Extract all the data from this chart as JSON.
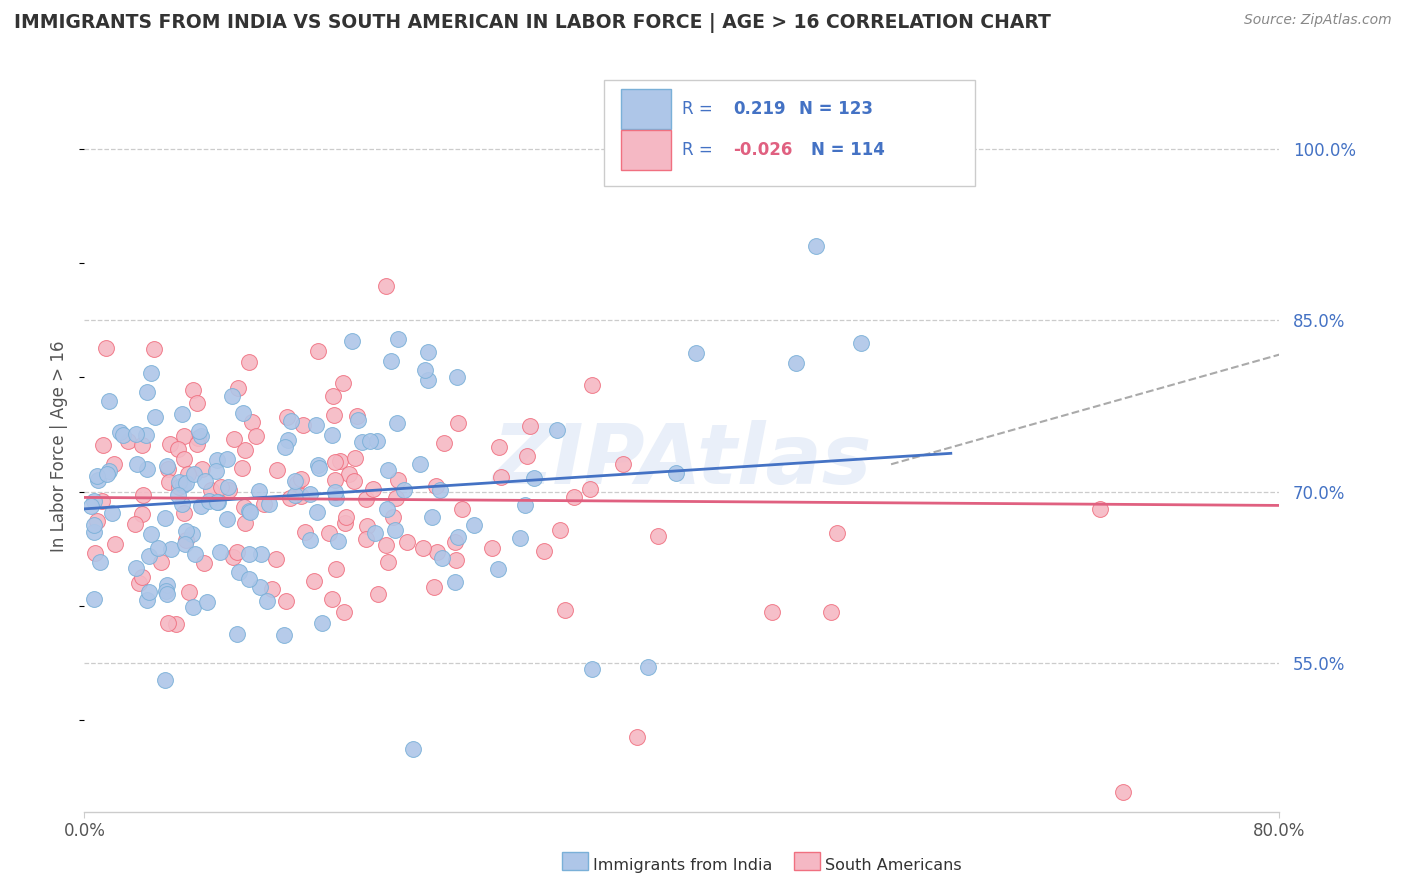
{
  "title": "IMMIGRANTS FROM INDIA VS SOUTH AMERICAN IN LABOR FORCE | AGE > 16 CORRELATION CHART",
  "source": "Source: ZipAtlas.com",
  "ylabel": "In Labor Force | Age > 16",
  "yticks_labels": [
    "55.0%",
    "70.0%",
    "85.0%",
    "100.0%"
  ],
  "ytick_vals": [
    0.55,
    0.7,
    0.85,
    1.0
  ],
  "xlim": [
    0.0,
    0.8
  ],
  "ylim": [
    0.42,
    1.06
  ],
  "india_R": 0.219,
  "india_N": 123,
  "south_R": -0.026,
  "south_N": 114,
  "india_line_color": "#4472c4",
  "south_line_color": "#e06080",
  "india_scatter_color": "#aec6e8",
  "south_scatter_color": "#f5b8c4",
  "india_scatter_edge": "#7ab0d8",
  "south_scatter_edge": "#f07080",
  "dashed_line_color": "#aaaaaa",
  "watermark_text": "ZIPAtlas",
  "watermark_color": "#c8d8f0",
  "grid_color": "#cccccc",
  "bg_color": "#ffffff",
  "right_tick_color": "#4472c4",
  "legend_text_color": "#4472c4",
  "legend_R_south_color": "#e06080",
  "title_color": "#333333",
  "source_color": "#888888",
  "axis_label_color": "#555555",
  "xtick_left_label": "0.0%",
  "xtick_right_label": "80.0%"
}
